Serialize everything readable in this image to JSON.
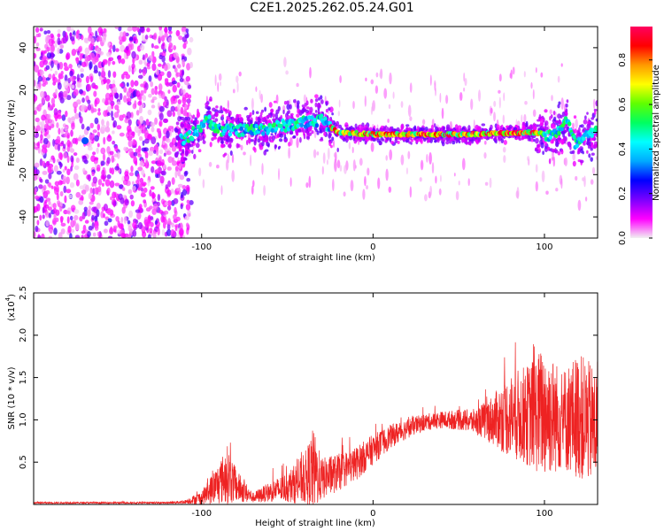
{
  "title": "C2E1.2025.262.05.24.G01",
  "chart_data": [
    {
      "type": "heatmap",
      "title": "",
      "xlabel": "Height of straight line (km)",
      "ylabel": "Frequency (Hz)",
      "xlim": [
        -198,
        131
      ],
      "ylim": [
        -50,
        50
      ],
      "xticks": [
        "-100",
        "0",
        "100"
      ],
      "yticks": [
        "40",
        "20",
        "0",
        "-20",
        "-40"
      ],
      "grid": false,
      "colorbar": {
        "label": "Normalized spectral amplitude",
        "range": [
          0,
          0.95
        ],
        "ticks": [
          "0.0",
          "0.2",
          "0.4",
          "0.6",
          "0.8"
        ],
        "colormap": [
          "#f1f1f1",
          "#ff00ff",
          "#7a00ff",
          "#0000ff",
          "#00aaff",
          "#00ffff",
          "#00ff60",
          "#60ff00",
          "#ffff00",
          "#ff9900",
          "#ff0000",
          "#ff0060"
        ]
      },
      "ridge": [
        {
          "x": -110,
          "y": -4
        },
        {
          "x": -96,
          "y": 6
        },
        {
          "x": -90,
          "y": 1
        },
        {
          "x": -70,
          "y": 1
        },
        {
          "x": -45,
          "y": 4
        },
        {
          "x": -30,
          "y": 6
        },
        {
          "x": -24,
          "y": 2
        },
        {
          "x": -20,
          "y": 0
        },
        {
          "x": 0,
          "y": -1
        },
        {
          "x": 50,
          "y": -1
        },
        {
          "x": 95,
          "y": 0
        },
        {
          "x": 105,
          "y": -2
        },
        {
          "x": 110,
          "y": 3
        },
        {
          "x": 113,
          "y": 6
        },
        {
          "x": 118,
          "y": -6
        },
        {
          "x": 125,
          "y": -2
        },
        {
          "x": 131,
          "y": 1
        }
      ]
    },
    {
      "type": "line",
      "title": "",
      "xlabel": "Height of straight line (km)",
      "ylabel": "SNR (10 * v/v)",
      "yscale_label": "(x10",
      "yscale_exp": "4",
      "xlim": [
        -198,
        131
      ],
      "ylim": [
        0,
        2.5
      ],
      "xticks": [
        "-100",
        "0",
        "100"
      ],
      "yticks": [
        "0.5",
        "1.0",
        "1.5",
        "2.0",
        "2.5"
      ],
      "grid": false,
      "line_color": "#ee2222",
      "series": [
        {
          "x": [
            -198,
            -120,
            -110,
            -100,
            -90,
            -85,
            -80,
            -70,
            -60,
            -50,
            -40,
            -35,
            -30,
            -20,
            -10,
            0,
            10,
            20,
            30,
            40,
            50,
            60,
            70,
            80,
            90,
            100,
            110,
            120,
            131
          ],
          "y": [
            0.02,
            0.02,
            0.03,
            0.08,
            0.25,
            0.35,
            0.22,
            0.08,
            0.15,
            0.2,
            0.3,
            0.4,
            0.3,
            0.38,
            0.48,
            0.65,
            0.8,
            0.9,
            0.97,
            1.0,
            1.0,
            0.98,
            1.0,
            1.05,
            1.05,
            1.1,
            1.0,
            1.05,
            0.9
          ],
          "spread": [
            0.01,
            0.01,
            0.02,
            0.08,
            0.25,
            0.35,
            0.2,
            0.06,
            0.12,
            0.18,
            0.3,
            0.5,
            0.25,
            0.22,
            0.2,
            0.18,
            0.14,
            0.12,
            0.1,
            0.1,
            0.12,
            0.15,
            0.3,
            0.5,
            0.6,
            0.8,
            0.6,
            0.75,
            0.7
          ]
        }
      ]
    }
  ]
}
